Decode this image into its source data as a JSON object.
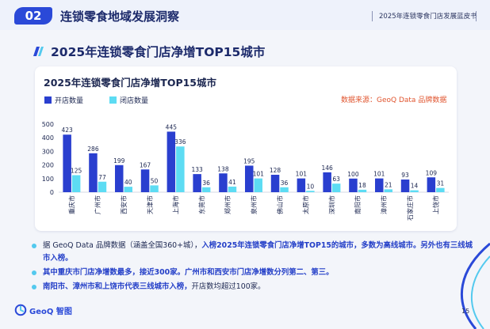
{
  "header": {
    "section_number": "02",
    "section_title": "连锁零食地域发展洞察",
    "report_name": "2025年连锁零食门店发展蓝皮书"
  },
  "section_heading": "2025年连锁零食门店净增TOP15城市",
  "source_note": "数据来源：GeoQ Data 品牌数据",
  "colors": {
    "open": "#2a3fcf",
    "closed": "#5ddcf3",
    "accent_blue": "#2540c8",
    "source_orange": "#e0542e"
  },
  "chart_data": {
    "type": "bar",
    "title": "2025年连锁零食门店净增TOP15城市",
    "categories": [
      "重庆市",
      "广州市",
      "西安市",
      "天津市",
      "上海市",
      "东莞市",
      "郑州市",
      "泉州市",
      "佛山市",
      "太原市",
      "深圳市",
      "南阳市",
      "漳州市",
      "石家庄市",
      "上饶市"
    ],
    "series": [
      {
        "name": "开店数量",
        "values": [
          423,
          286,
          199,
          167,
          445,
          133,
          138,
          195,
          128,
          101,
          146,
          100,
          101,
          93,
          109
        ]
      },
      {
        "name": "闭店数量",
        "values": [
          125,
          77,
          40,
          50,
          336,
          36,
          41,
          101,
          36,
          10,
          63,
          18,
          21,
          14,
          31
        ]
      }
    ],
    "yticks": [
      "0",
      "100",
      "200",
      "300",
      "400",
      "500"
    ],
    "ylim": [
      0,
      500
    ],
    "legend_position": "top-left",
    "grid": false
  },
  "bullets": [
    {
      "parts": [
        {
          "t": "据 GeoQ Data 品牌数据（涵盖全国360+城），",
          "b": false
        },
        {
          "t": "入榜2025年连锁零食门店净增TOP15的城市，多数为高线城市。另外也有三线城市入榜。",
          "b": true
        }
      ]
    },
    {
      "parts": [
        {
          "t": "其中重庆市门店净增数最多，接近300家。广州市和西安市门店净增数分列第二、第三。",
          "b": true
        }
      ]
    },
    {
      "parts": [
        {
          "t": "南阳市、漳州市和上饶市代表三线城市入榜，",
          "b": true
        },
        {
          "t": "开店数均超过100家。",
          "b": false
        }
      ]
    }
  ],
  "footer": {
    "logo_text": "GeoQ 智图",
    "page_number": "15"
  }
}
